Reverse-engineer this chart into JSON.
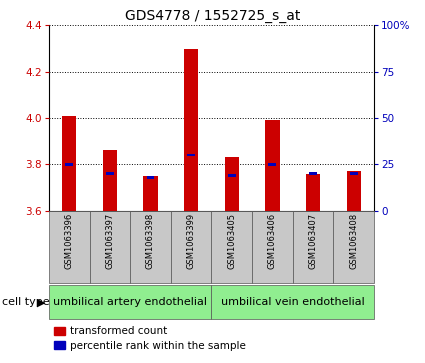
{
  "title": "GDS4778 / 1552725_s_at",
  "samples": [
    "GSM1063396",
    "GSM1063397",
    "GSM1063398",
    "GSM1063399",
    "GSM1063405",
    "GSM1063406",
    "GSM1063407",
    "GSM1063408"
  ],
  "red_values": [
    4.01,
    3.86,
    3.75,
    4.3,
    3.83,
    3.99,
    3.76,
    3.77
  ],
  "blue_values_pct": [
    25,
    20,
    18,
    30,
    19,
    25,
    20,
    20
  ],
  "ylim": [
    3.6,
    4.4
  ],
  "y2lim": [
    0,
    100
  ],
  "yticks": [
    3.6,
    3.8,
    4.0,
    4.2,
    4.4
  ],
  "y2ticks": [
    0,
    25,
    50,
    75,
    100
  ],
  "cell_type_groups": [
    {
      "label": "umbilical artery endothelial",
      "start": 0,
      "end": 3
    },
    {
      "label": "umbilical vein endothelial",
      "start": 4,
      "end": 7
    }
  ],
  "cell_type_label": "cell type",
  "group_bg_color": "#90EE90",
  "sample_bg_color": "#C8C8C8",
  "red_color": "#CC0000",
  "blue_color": "#0000BB",
  "title_fontsize": 10,
  "tick_fontsize": 7.5,
  "sample_fontsize": 6,
  "celltype_fontsize": 8,
  "legend_fontsize": 7.5,
  "bar_width": 0.35
}
